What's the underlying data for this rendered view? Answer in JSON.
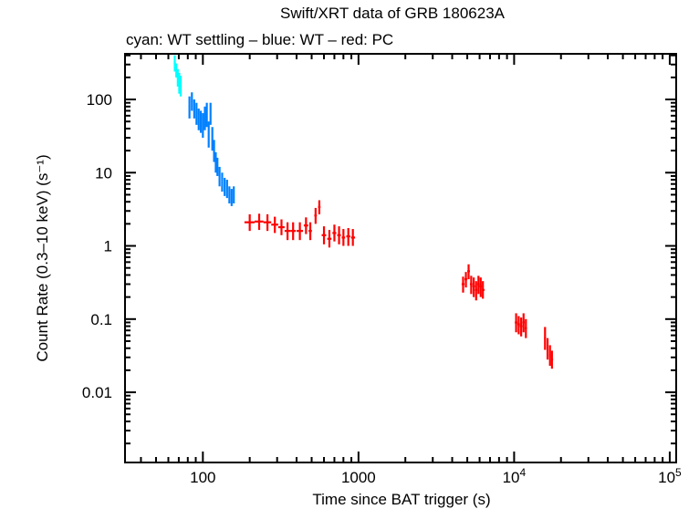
{
  "chart_data": {
    "type": "scatter",
    "title": "Swift/XRT data of GRB 180623A",
    "subtitle": "cyan: WT settling – blue: WT – red: PC",
    "xlabel": "Time since BAT trigger (s)",
    "ylabel": "Count Rate (0.3–10 keV) (s⁻¹)",
    "xscale": "log",
    "yscale": "log",
    "xlim": [
      31.6,
      110000
    ],
    "ylim": [
      0.0011,
      420
    ],
    "grid": false,
    "x_ticks": [
      {
        "value": 100,
        "label": "100"
      },
      {
        "value": 1000,
        "label": "1000"
      },
      {
        "value": 10000,
        "label": "10",
        "sup": "4"
      },
      {
        "value": 100000,
        "label": "10",
        "sup": "5"
      }
    ],
    "y_ticks": [
      {
        "value": 100,
        "label": "100"
      },
      {
        "value": 10,
        "label": "10"
      },
      {
        "value": 1,
        "label": "1"
      },
      {
        "value": 0.1,
        "label": "0.1"
      },
      {
        "value": 0.01,
        "label": "0.01"
      }
    ],
    "series": [
      {
        "name": "WT settling",
        "color": "#00FFFF",
        "points": [
          {
            "t": 66,
            "r": 310,
            "terr": 1,
            "rlo": 240,
            "rhi": 400
          },
          {
            "t": 67.5,
            "r": 250,
            "terr": 1,
            "rlo": 200,
            "rhi": 310
          },
          {
            "t": 69,
            "r": 200,
            "terr": 1,
            "rlo": 150,
            "rhi": 260
          },
          {
            "t": 70.5,
            "r": 175,
            "terr": 1,
            "rlo": 120,
            "rhi": 230
          },
          {
            "t": 72,
            "r": 160,
            "terr": 1,
            "rlo": 110,
            "rhi": 210
          }
        ]
      },
      {
        "name": "WT",
        "color": "#0080FF",
        "points": [
          {
            "t": 82,
            "r": 80,
            "terr": 1,
            "rlo": 55,
            "rhi": 110
          },
          {
            "t": 85,
            "r": 95,
            "terr": 1,
            "rlo": 70,
            "rhi": 125
          },
          {
            "t": 88,
            "r": 75,
            "terr": 1,
            "rlo": 55,
            "rhi": 100
          },
          {
            "t": 91,
            "r": 65,
            "terr": 1,
            "rlo": 45,
            "rhi": 90
          },
          {
            "t": 94,
            "r": 55,
            "terr": 1,
            "rlo": 38,
            "rhi": 75
          },
          {
            "t": 97,
            "r": 50,
            "terr": 1,
            "rlo": 35,
            "rhi": 70
          },
          {
            "t": 100,
            "r": 45,
            "terr": 1,
            "rlo": 30,
            "rhi": 65
          },
          {
            "t": 103,
            "r": 55,
            "terr": 1,
            "rlo": 38,
            "rhi": 80
          },
          {
            "t": 106,
            "r": 60,
            "terr": 1,
            "rlo": 42,
            "rhi": 90
          },
          {
            "t": 109,
            "r": 35,
            "terr": 1,
            "rlo": 22,
            "rhi": 50
          },
          {
            "t": 112,
            "r": 65,
            "terr": 1,
            "rlo": 45,
            "rhi": 90
          },
          {
            "t": 115,
            "r": 30,
            "terr": 1,
            "rlo": 20,
            "rhi": 42
          },
          {
            "t": 118,
            "r": 20,
            "terr": 1,
            "rlo": 14,
            "rhi": 28
          },
          {
            "t": 121,
            "r": 14,
            "terr": 1,
            "rlo": 10,
            "rhi": 19
          },
          {
            "t": 124,
            "r": 12,
            "terr": 1,
            "rlo": 9,
            "rhi": 16
          },
          {
            "t": 128,
            "r": 9,
            "terr": 1,
            "rlo": 6.5,
            "rhi": 12
          },
          {
            "t": 133,
            "r": 7.5,
            "terr": 1.5,
            "rlo": 5.5,
            "rhi": 10
          },
          {
            "t": 138,
            "r": 6.5,
            "terr": 1.5,
            "rlo": 4.8,
            "rhi": 8.5
          },
          {
            "t": 143,
            "r": 6,
            "terr": 1.5,
            "rlo": 4.5,
            "rhi": 8
          },
          {
            "t": 148,
            "r": 5,
            "terr": 1.5,
            "rlo": 3.8,
            "rhi": 6.5
          },
          {
            "t": 153,
            "r": 4.5,
            "terr": 1.5,
            "rlo": 3.5,
            "rhi": 6
          },
          {
            "t": 158,
            "r": 5,
            "terr": 1.5,
            "rlo": 3.8,
            "rhi": 6.5
          }
        ]
      },
      {
        "name": "PC",
        "color": "#FF0000",
        "points": [
          {
            "t": 200,
            "r": 2.1,
            "tlo": 185,
            "thi": 215,
            "rlo": 1.6,
            "rhi": 2.7
          },
          {
            "t": 230,
            "r": 2.15,
            "tlo": 215,
            "thi": 245,
            "rlo": 1.65,
            "rhi": 2.75
          },
          {
            "t": 260,
            "r": 2.1,
            "tlo": 245,
            "thi": 275,
            "rlo": 1.6,
            "rhi": 2.7
          },
          {
            "t": 290,
            "r": 1.95,
            "tlo": 275,
            "thi": 305,
            "rlo": 1.5,
            "rhi": 2.5
          },
          {
            "t": 320,
            "r": 1.8,
            "tlo": 305,
            "thi": 335,
            "rlo": 1.4,
            "rhi": 2.3
          },
          {
            "t": 350,
            "r": 1.6,
            "tlo": 335,
            "thi": 365,
            "rlo": 1.2,
            "rhi": 2.1
          },
          {
            "t": 380,
            "r": 1.6,
            "tlo": 365,
            "thi": 395,
            "rlo": 1.2,
            "rhi": 2.1
          },
          {
            "t": 420,
            "r": 1.6,
            "tlo": 400,
            "thi": 440,
            "rlo": 1.2,
            "rhi": 2.1
          },
          {
            "t": 460,
            "r": 1.9,
            "tlo": 445,
            "thi": 475,
            "rlo": 1.45,
            "rhi": 2.45
          },
          {
            "t": 490,
            "r": 1.6,
            "tlo": 478,
            "thi": 502,
            "rlo": 1.2,
            "rhi": 2.1
          },
          {
            "t": 530,
            "r": 2.6,
            "tlo": 520,
            "thi": 540,
            "rlo": 2.0,
            "rhi": 3.3
          },
          {
            "t": 560,
            "r": 3.4,
            "tlo": 550,
            "thi": 570,
            "rlo": 2.7,
            "rhi": 4.2
          },
          {
            "t": 600,
            "r": 1.4,
            "tlo": 580,
            "thi": 620,
            "rlo": 1.05,
            "rhi": 1.85
          },
          {
            "t": 650,
            "r": 1.25,
            "tlo": 630,
            "thi": 670,
            "rlo": 0.95,
            "rhi": 1.65
          },
          {
            "t": 700,
            "r": 1.5,
            "tlo": 680,
            "thi": 720,
            "rlo": 1.15,
            "rhi": 1.95
          },
          {
            "t": 750,
            "r": 1.4,
            "tlo": 730,
            "thi": 770,
            "rlo": 1.05,
            "rhi": 1.85
          },
          {
            "t": 800,
            "r": 1.3,
            "tlo": 780,
            "thi": 820,
            "rlo": 1.0,
            "rhi": 1.7
          },
          {
            "t": 860,
            "r": 1.35,
            "tlo": 835,
            "thi": 885,
            "rlo": 1.0,
            "rhi": 1.75
          },
          {
            "t": 920,
            "r": 1.3,
            "tlo": 895,
            "thi": 950,
            "rlo": 1.0,
            "rhi": 1.7
          },
          {
            "t": 4700,
            "r": 0.3,
            "tlo": 4600,
            "thi": 4800,
            "rlo": 0.23,
            "rhi": 0.38
          },
          {
            "t": 4900,
            "r": 0.35,
            "tlo": 4800,
            "thi": 5000,
            "rlo": 0.27,
            "rhi": 0.44
          },
          {
            "t": 5100,
            "r": 0.45,
            "tlo": 5000,
            "thi": 5200,
            "rlo": 0.35,
            "rhi": 0.56
          },
          {
            "t": 5300,
            "r": 0.3,
            "tlo": 5200,
            "thi": 5400,
            "rlo": 0.22,
            "rhi": 0.39
          },
          {
            "t": 5500,
            "r": 0.28,
            "tlo": 5400,
            "thi": 5600,
            "rlo": 0.2,
            "rhi": 0.37
          },
          {
            "t": 5700,
            "r": 0.25,
            "tlo": 5600,
            "thi": 5800,
            "rlo": 0.18,
            "rhi": 0.33
          },
          {
            "t": 5900,
            "r": 0.3,
            "tlo": 5800,
            "thi": 6000,
            "rlo": 0.22,
            "rhi": 0.39
          },
          {
            "t": 6100,
            "r": 0.28,
            "tlo": 6000,
            "thi": 6200,
            "rlo": 0.2,
            "rhi": 0.37
          },
          {
            "t": 6300,
            "r": 0.25,
            "tlo": 6200,
            "thi": 6450,
            "rlo": 0.19,
            "rhi": 0.33
          },
          {
            "t": 10300,
            "r": 0.09,
            "tlo": 10100,
            "thi": 10500,
            "rlo": 0.066,
            "rhi": 0.12
          },
          {
            "t": 10700,
            "r": 0.085,
            "tlo": 10500,
            "thi": 10900,
            "rlo": 0.062,
            "rhi": 0.11
          },
          {
            "t": 11100,
            "r": 0.08,
            "tlo": 10900,
            "thi": 11300,
            "rlo": 0.058,
            "rhi": 0.105
          },
          {
            "t": 11500,
            "r": 0.09,
            "tlo": 11300,
            "thi": 11700,
            "rlo": 0.066,
            "rhi": 0.12
          },
          {
            "t": 11900,
            "r": 0.075,
            "tlo": 11700,
            "thi": 12100,
            "rlo": 0.055,
            "rhi": 0.1
          },
          {
            "t": 15800,
            "r": 0.055,
            "tlo": 15600,
            "thi": 16000,
            "rlo": 0.038,
            "rhi": 0.078
          },
          {
            "t": 16400,
            "r": 0.04,
            "tlo": 16200,
            "thi": 16600,
            "rlo": 0.028,
            "rhi": 0.055
          },
          {
            "t": 17000,
            "r": 0.032,
            "tlo": 16800,
            "thi": 17200,
            "rlo": 0.023,
            "rhi": 0.044
          },
          {
            "t": 17500,
            "r": 0.028,
            "tlo": 17300,
            "thi": 17800,
            "rlo": 0.021,
            "rhi": 0.037
          }
        ]
      }
    ]
  }
}
